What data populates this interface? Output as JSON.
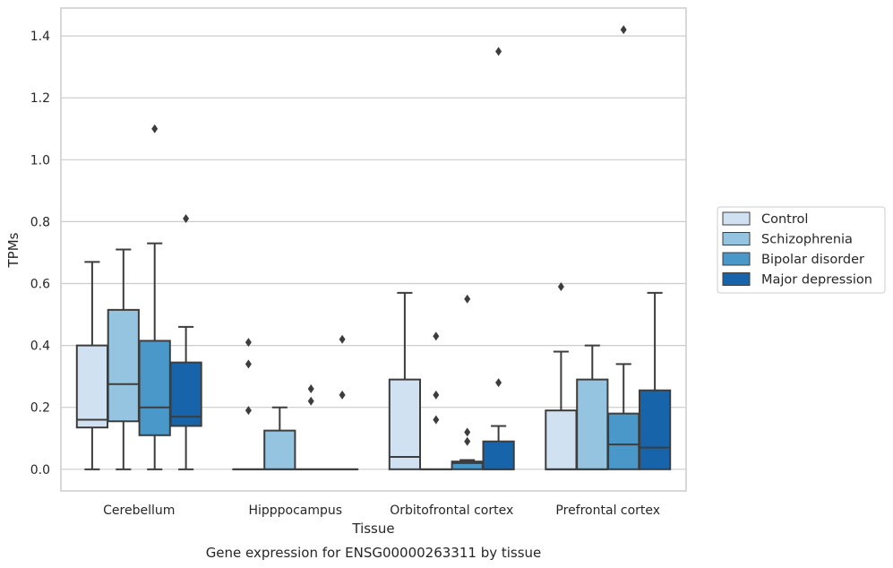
{
  "chart_data": {
    "type": "box",
    "title": "",
    "caption": "Gene expression for ENSG00000263311 by tissue",
    "xlabel": "Tissue",
    "ylabel": "TPMs",
    "ylim": [
      -0.07,
      1.49
    ],
    "yticks": [
      0.0,
      0.2,
      0.4,
      0.6,
      0.8,
      1.0,
      1.2,
      1.4
    ],
    "ytick_labels": [
      "0.0",
      "0.2",
      "0.4",
      "0.6",
      "0.8",
      "1.0",
      "1.2",
      "1.4"
    ],
    "grid": true,
    "legend_position": "right",
    "categories": [
      "Cerebellum",
      "Hipppocampus",
      "Orbitofrontal cortex",
      "Prefrontal cortex"
    ],
    "series": [
      {
        "name": "Control",
        "color": "#d0e1f2",
        "boxes": [
          {
            "whislo": 0.0,
            "q1": 0.135,
            "med": 0.16,
            "q3": 0.4,
            "whishi": 0.67,
            "fliers": []
          },
          {
            "whislo": 0.0,
            "q1": 0.0,
            "med": 0.0,
            "q3": 0.0,
            "whishi": 0.0,
            "fliers": [
              0.19,
              0.34,
              0.41
            ]
          },
          {
            "whislo": 0.0,
            "q1": 0.0,
            "med": 0.04,
            "q3": 0.29,
            "whishi": 0.57,
            "fliers": []
          },
          {
            "whislo": 0.0,
            "q1": 0.0,
            "med": 0.0,
            "q3": 0.19,
            "whishi": 0.38,
            "fliers": [
              0.59
            ]
          }
        ]
      },
      {
        "name": "Schizophrenia",
        "color": "#94c4df",
        "boxes": [
          {
            "whislo": 0.0,
            "q1": 0.155,
            "med": 0.275,
            "q3": 0.515,
            "whishi": 0.71,
            "fliers": []
          },
          {
            "whislo": 0.0,
            "q1": 0.0,
            "med": 0.0,
            "q3": 0.125,
            "whishi": 0.2,
            "fliers": []
          },
          {
            "whislo": 0.0,
            "q1": 0.0,
            "med": 0.0,
            "q3": 0.0,
            "whishi": 0.0,
            "fliers": [
              0.16,
              0.24,
              0.43
            ]
          },
          {
            "whislo": 0.0,
            "q1": 0.0,
            "med": 0.0,
            "q3": 0.29,
            "whishi": 0.4,
            "fliers": []
          }
        ]
      },
      {
        "name": "Bipolar disorder",
        "color": "#4a98c9",
        "boxes": [
          {
            "whislo": 0.0,
            "q1": 0.11,
            "med": 0.2,
            "q3": 0.415,
            "whishi": 0.73,
            "fliers": [
              1.1
            ]
          },
          {
            "whislo": 0.0,
            "q1": 0.0,
            "med": 0.0,
            "q3": 0.0,
            "whishi": 0.0,
            "fliers": [
              0.22,
              0.26
            ]
          },
          {
            "whislo": 0.0,
            "q1": 0.0,
            "med": 0.02,
            "q3": 0.025,
            "whishi": 0.03,
            "fliers": [
              0.09,
              0.12,
              0.55
            ]
          },
          {
            "whislo": 0.0,
            "q1": 0.0,
            "med": 0.08,
            "q3": 0.18,
            "whishi": 0.34,
            "fliers": [
              1.42
            ]
          }
        ]
      },
      {
        "name": "Major depression",
        "color": "#1764ab",
        "boxes": [
          {
            "whislo": 0.0,
            "q1": 0.14,
            "med": 0.17,
            "q3": 0.345,
            "whishi": 0.46,
            "fliers": [
              0.81
            ]
          },
          {
            "whislo": 0.0,
            "q1": 0.0,
            "med": 0.0,
            "q3": 0.0,
            "whishi": 0.0,
            "fliers": [
              0.24,
              0.42
            ]
          },
          {
            "whislo": 0.0,
            "q1": 0.0,
            "med": 0.0,
            "q3": 0.09,
            "whishi": 0.14,
            "fliers": [
              0.28,
              1.35
            ]
          },
          {
            "whislo": 0.0,
            "q1": 0.0,
            "med": 0.07,
            "q3": 0.255,
            "whishi": 0.57,
            "fliers": []
          }
        ]
      }
    ]
  }
}
